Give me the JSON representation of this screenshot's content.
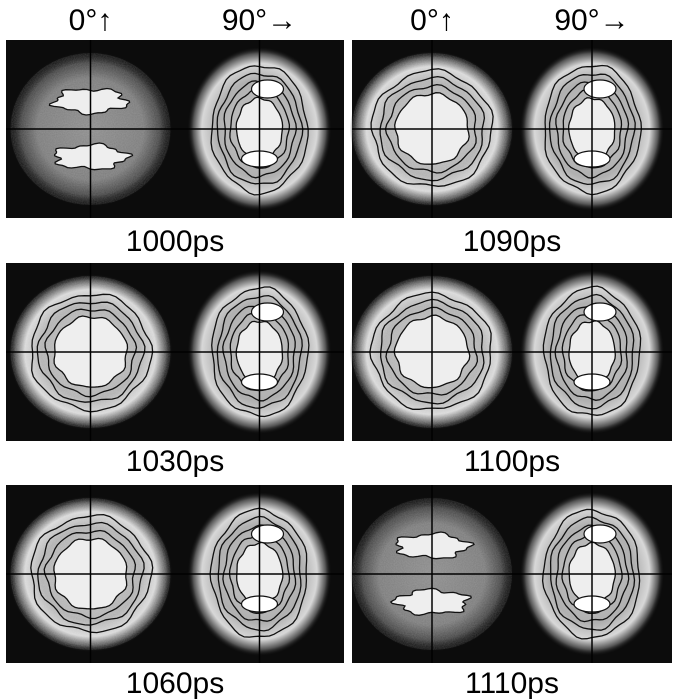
{
  "columns": [
    {
      "headers": [
        "0°↑",
        "90°→"
      ],
      "panels": [
        "1000ps",
        "1030ps",
        "1060ps"
      ]
    },
    {
      "headers": [
        "0°↑",
        "90°→"
      ],
      "panels": [
        "1090ps",
        "1100ps",
        "1110ps"
      ]
    }
  ]
}
